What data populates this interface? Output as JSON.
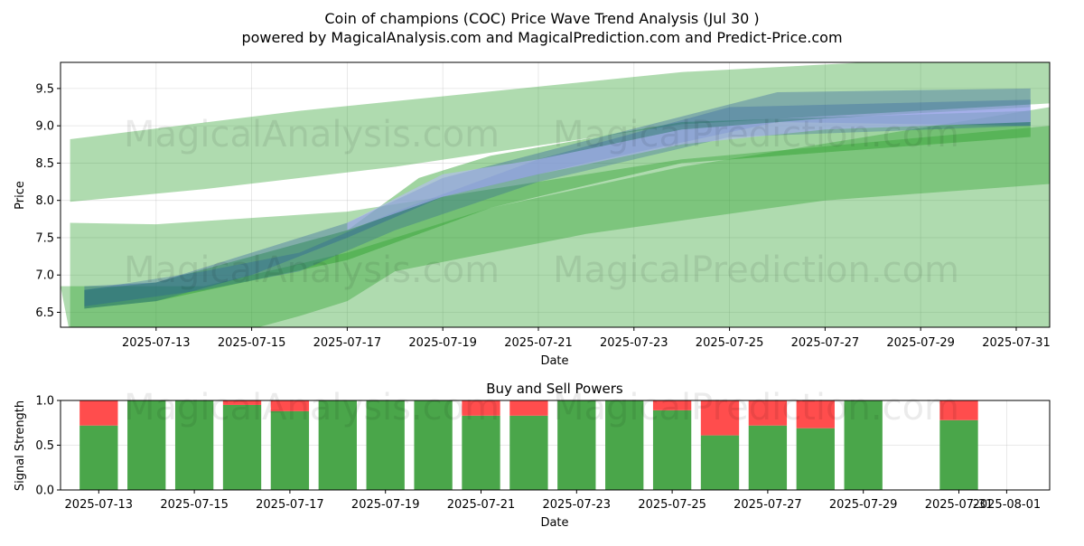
{
  "header": {
    "title": "Coin of champions (COC) Price Wave Trend Analysis (Jul 30 )",
    "subtitle": "powered by MagicalAnalysis.com and MagicalPrediction.com and Predict-Price.com"
  },
  "watermarks": [
    "MagicalAnalysis.com",
    "MagicalPrediction.com"
  ],
  "colors": {
    "band_green": "#2ca02c",
    "band_blue": "#1f4fa0",
    "band_light_blue": "#b8b8ff",
    "buy": "#4aa64a",
    "sell": "#ff4d4d"
  },
  "chart_data": [
    {
      "type": "area",
      "title": "",
      "xlabel": "Date",
      "ylabel": "Price",
      "xlim": [
        "2025-07-11",
        "2025-07-31.7"
      ],
      "ylim": [
        6.3,
        9.85
      ],
      "grid": true,
      "x_ticks": [
        "2025-07-13",
        "2025-07-15",
        "2025-07-17",
        "2025-07-19",
        "2025-07-21",
        "2025-07-23",
        "2025-07-25",
        "2025-07-27",
        "2025-07-29",
        "2025-07-31"
      ],
      "y_ticks": [
        "6.5",
        "7.0",
        "7.5",
        "8.0",
        "8.5",
        "9.0",
        "9.5"
      ],
      "series": [
        {
          "color": "green",
          "opacity": 0.38,
          "upper": [
            [
              "2025-07-11.2",
              8.82
            ],
            [
              "2025-07-16",
              9.2
            ],
            [
              "2025-07-24",
              9.72
            ],
            [
              "2025-07-31.7",
              9.98
            ]
          ],
          "lower": [
            [
              "2025-07-11.2",
              7.98
            ],
            [
              "2025-07-14",
              8.15
            ],
            [
              "2025-07-18",
              8.45
            ],
            [
              "2025-07-24",
              9.02
            ],
            [
              "2025-07-31.7",
              9.3
            ]
          ]
        },
        {
          "color": "green",
          "opacity": 0.38,
          "upper": [
            [
              "2025-07-11.2",
              7.7
            ],
            [
              "2025-07-13",
              7.68
            ],
            [
              "2025-07-17",
              7.85
            ],
            [
              "2025-07-24",
              8.55
            ],
            [
              "2025-07-31.7",
              9.0
            ]
          ]
        },
        {
          "color": "green",
          "opacity": 0.38,
          "upper": [
            [
              "2025-07-11",
              6.85
            ],
            [
              "2025-07-14",
              6.85
            ],
            [
              "2025-07-17",
              7.3
            ],
            [
              "2025-07-20",
              7.9
            ],
            [
              "2025-07-24",
              8.45
            ],
            [
              "2025-07-31.7",
              9.25
            ]
          ],
          "lower": [
            [
              "2025-07-11.2",
              6.2
            ],
            [
              "2025-07-14",
              6.1
            ],
            [
              "2025-07-16",
              6.45
            ],
            [
              "2025-07-17",
              6.65
            ],
            [
              "2025-07-18",
              7.05
            ],
            [
              "2025-07-22",
              7.55
            ],
            [
              "2025-07-27",
              8.0
            ],
            [
              "2025-07-31.7",
              8.22
            ]
          ]
        },
        {
          "color": "green",
          "opacity": 0.45,
          "upper": [
            [
              "2025-07-11.5",
              6.8
            ],
            [
              "2025-07-13",
              6.9
            ],
            [
              "2025-07-17",
              7.6
            ],
            [
              "2025-07-18.5",
              8.3
            ],
            [
              "2025-07-20",
              8.6
            ],
            [
              "2025-07-24",
              9.05
            ],
            [
              "2025-07-31.3",
              9.2
            ]
          ],
          "lower": [
            [
              "2025-07-11.5",
              6.55
            ],
            [
              "2025-07-13",
              6.65
            ],
            [
              "2025-07-17",
              7.2
            ],
            [
              "2025-07-20",
              7.9
            ],
            [
              "2025-07-24",
              8.5
            ],
            [
              "2025-07-31.3",
              8.85
            ]
          ]
        },
        {
          "color": "blue",
          "opacity": 0.32,
          "upper": [
            [
              "2025-07-11.5",
              6.85
            ],
            [
              "2025-07-13",
              6.9
            ],
            [
              "2025-07-15",
              7.3
            ],
            [
              "2025-07-17",
              7.7
            ],
            [
              "2025-07-19",
              8.3
            ],
            [
              "2025-07-22",
              8.8
            ],
            [
              "2025-07-26",
              9.45
            ],
            [
              "2025-07-31.3",
              9.5
            ]
          ],
          "lower": [
            [
              "2025-07-11.5",
              6.55
            ],
            [
              "2025-07-13",
              6.65
            ],
            [
              "2025-07-15",
              7.0
            ],
            [
              "2025-07-17",
              7.5
            ],
            [
              "2025-07-19",
              8.05
            ],
            [
              "2025-07-22",
              8.5
            ],
            [
              "2025-07-26",
              9.05
            ],
            [
              "2025-07-31.3",
              9.0
            ]
          ]
        },
        {
          "color": "blue",
          "opacity": 0.28,
          "upper": [
            [
              "2025-07-11.5",
              6.8
            ],
            [
              "2025-07-14",
              7.05
            ],
            [
              "2025-07-16",
              7.3
            ],
            [
              "2025-07-18",
              7.85
            ],
            [
              "2025-07-21",
              8.55
            ],
            [
              "2025-07-25",
              9.25
            ],
            [
              "2025-07-31.3",
              9.35
            ]
          ],
          "lower": [
            [
              "2025-07-11.5",
              6.58
            ],
            [
              "2025-07-14",
              6.8
            ],
            [
              "2025-07-16",
              7.05
            ],
            [
              "2025-07-18",
              7.6
            ],
            [
              "2025-07-21",
              8.25
            ],
            [
              "2025-07-25",
              8.85
            ],
            [
              "2025-07-31.3",
              9.0
            ]
          ]
        },
        {
          "color": "lightblue",
          "opacity": 0.55,
          "upper": [
            [
              "2025-07-17",
              7.7
            ],
            [
              "2025-07-19",
              8.35
            ],
            [
              "2025-07-21",
              8.55
            ],
            [
              "2025-07-24",
              8.95
            ],
            [
              "2025-07-27",
              9.1
            ],
            [
              "2025-07-31.3",
              9.25
            ]
          ],
          "lower": [
            [
              "2025-07-17",
              7.6
            ],
            [
              "2025-07-19",
              8.05
            ],
            [
              "2025-07-21",
              8.35
            ],
            [
              "2025-07-24",
              8.75
            ],
            [
              "2025-07-27",
              8.95
            ],
            [
              "2025-07-31.3",
              9.05
            ]
          ]
        }
      ]
    },
    {
      "type": "bar",
      "title": "Buy and Sell Powers",
      "xlabel": "Date",
      "ylabel": "Signal Strength",
      "ylim": [
        0.0,
        1.0
      ],
      "y_ticks": [
        "0.0",
        "0.5",
        "1.0"
      ],
      "x_ticks": [
        "2025-07-13",
        "2025-07-15",
        "2025-07-17",
        "2025-07-19",
        "2025-07-21",
        "2025-07-23",
        "2025-07-25",
        "2025-07-27",
        "2025-07-29",
        "2025-07-31",
        "2025-08-01"
      ],
      "x": [
        "2025-07-13",
        "2025-07-14",
        "2025-07-15",
        "2025-07-16",
        "2025-07-17",
        "2025-07-18",
        "2025-07-19",
        "2025-07-20",
        "2025-07-21",
        "2025-07-22",
        "2025-07-23",
        "2025-07-24",
        "2025-07-25",
        "2025-07-26",
        "2025-07-27",
        "2025-07-28",
        "2025-07-29",
        "2025-07-31"
      ],
      "buy": [
        0.72,
        1.0,
        1.0,
        0.95,
        0.88,
        1.0,
        1.0,
        1.0,
        0.83,
        0.83,
        1.0,
        1.0,
        0.89,
        0.61,
        0.72,
        0.69,
        1.0,
        0.78
      ]
    }
  ]
}
